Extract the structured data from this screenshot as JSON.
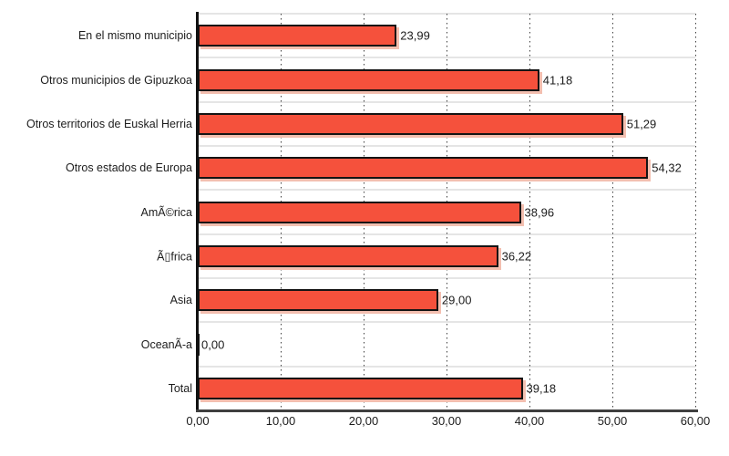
{
  "chart_data": {
    "type": "bar",
    "orientation": "horizontal",
    "title": "",
    "xlabel": "",
    "ylabel": "",
    "categories": [
      "En el mismo municipio",
      "Otros municipios de Gipuzkoa",
      "Otros territorios de Euskal Herria",
      "Otros estados de Europa",
      "AmÃ©rica",
      "Ã▯frica",
      "Asia",
      "OceanÃ-a",
      "Total"
    ],
    "values": [
      23.99,
      41.18,
      51.29,
      54.32,
      38.96,
      36.22,
      29.0,
      0.0,
      39.18
    ],
    "value_labels": [
      "23,99",
      "41,18",
      "51,29",
      "54,32",
      "38,96",
      "36,22",
      "29,00",
      "0,00",
      "39,18"
    ],
    "x_tick_values": [
      0,
      10,
      20,
      30,
      40,
      50,
      60
    ],
    "x_tick_labels": [
      "0,00",
      "10,00",
      "20,00",
      "30,00",
      "40,00",
      "50,00",
      "60,00"
    ],
    "xlim": [
      0,
      60
    ],
    "legend": "none",
    "grid": {
      "vertical_dotted": true,
      "horizontal_row_lines": true
    },
    "colors": {
      "bar_fill": "#F5513C",
      "bar_border": "#141414",
      "bar_shadow": "#F3BFB0",
      "row_line": "#E5E5E5",
      "grid_dot": "#404040",
      "axis_x": "#3F3F3F",
      "axis_y": "#111111",
      "text": "#1C1C1C",
      "background": "#FFFFFF"
    }
  }
}
